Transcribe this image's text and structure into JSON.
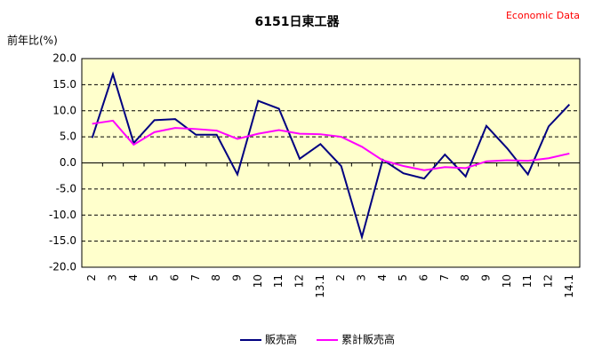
{
  "chart_data": {
    "type": "line",
    "title": "6151日東工器",
    "source": "Economic Data",
    "ylabel": "前年比(%)",
    "categories": [
      "2",
      "3",
      "4",
      "5",
      "6",
      "7",
      "8",
      "9",
      "10",
      "11",
      "12",
      "13.1",
      "2",
      "3",
      "4",
      "5",
      "6",
      "7",
      "8",
      "9",
      "10",
      "11",
      "12",
      "14.1"
    ],
    "series": [
      {
        "name": "販売高",
        "color": "#000080",
        "values": [
          4.8,
          17.0,
          3.8,
          8.2,
          8.4,
          5.4,
          5.4,
          -2.2,
          11.9,
          10.4,
          0.8,
          3.6,
          -0.6,
          -14.2,
          0.6,
          -2.0,
          -3.0,
          1.6,
          -2.6,
          7.1,
          2.8,
          -2.2,
          7.0,
          11.2
        ]
      },
      {
        "name": "累計販売高",
        "color": "#ff00ff",
        "values": [
          7.5,
          8.1,
          3.5,
          5.9,
          6.7,
          6.5,
          6.2,
          4.6,
          5.6,
          6.3,
          5.6,
          5.5,
          5.0,
          3.1,
          0.5,
          -0.6,
          -1.4,
          -0.8,
          -1.0,
          0.3,
          0.5,
          0.4,
          0.9,
          1.8
        ]
      }
    ],
    "ylim": [
      -20,
      20
    ],
    "yticks": [
      {
        "value": 20,
        "label": "20.0"
      },
      {
        "value": 15,
        "label": "15.0"
      },
      {
        "value": 10,
        "label": "10.0"
      },
      {
        "value": 5,
        "label": "5.0"
      },
      {
        "value": 0,
        "label": "0.0"
      },
      {
        "value": -5,
        "label": "-5.0"
      },
      {
        "value": -10,
        "label": "-10.0"
      },
      {
        "value": -15,
        "label": "-15.0"
      },
      {
        "value": -20,
        "label": "-20.0"
      }
    ],
    "grid": true,
    "legend": "bottom"
  }
}
